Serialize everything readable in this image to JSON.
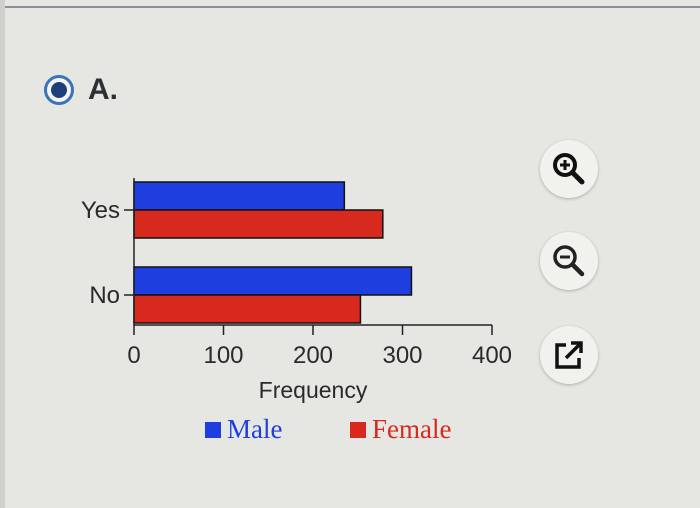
{
  "option": {
    "label": "A.",
    "selected": true
  },
  "tools": [
    {
      "name": "zoom-in-icon"
    },
    {
      "name": "zoom-out-icon"
    },
    {
      "name": "external-link-icon"
    }
  ],
  "chart_data": {
    "type": "bar",
    "orientation": "horizontal",
    "categories": [
      "Yes",
      "No"
    ],
    "series": [
      {
        "name": "Male",
        "values": [
          235,
          310
        ],
        "color": "#1f3ee0"
      },
      {
        "name": "Female",
        "values": [
          278,
          253
        ],
        "color": "#d8291e"
      }
    ],
    "x_ticks": [
      0,
      100,
      200,
      300,
      400
    ],
    "xlim": [
      0,
      400
    ],
    "xlabel": "Frequency",
    "ylabel": "",
    "title": "",
    "grid": false,
    "legend_position": "bottom"
  }
}
